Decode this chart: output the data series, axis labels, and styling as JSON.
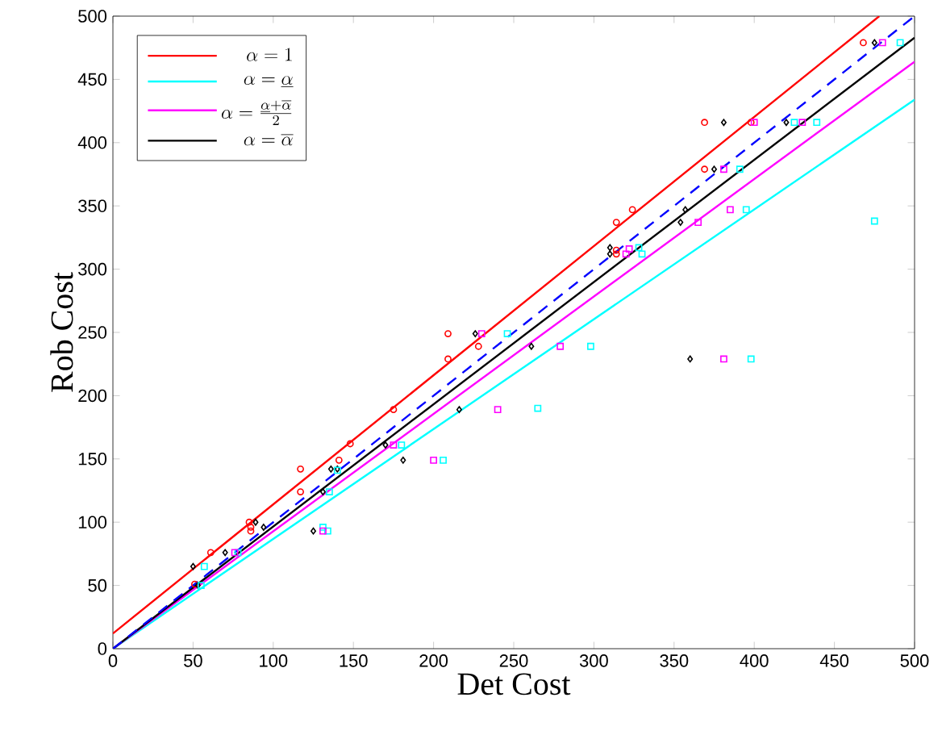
{
  "chart_data": {
    "type": "scatter",
    "xlabel": "Det Cost",
    "ylabel": "Rob Cost",
    "xlim": [
      0,
      500
    ],
    "ylim": [
      0,
      500
    ],
    "xticks": [
      0,
      50,
      100,
      150,
      200,
      250,
      300,
      350,
      400,
      450,
      500
    ],
    "yticks": [
      0,
      50,
      100,
      150,
      200,
      250,
      300,
      350,
      400,
      450,
      500
    ],
    "grid": false,
    "legend": "top left",
    "series": [
      {
        "name": "\\alpha=1",
        "type": "line",
        "color": "#ff0000",
        "marker": "none",
        "line_style": "solid",
        "x": [
          0,
          478
        ],
        "values": [
          12,
          500
        ]
      },
      {
        "name": "\\alpha=\\underline{\\alpha}",
        "type": "line",
        "color": "#00ffff",
        "marker": "none",
        "line_style": "solid",
        "x": [
          0,
          500
        ],
        "values": [
          0,
          434
        ]
      },
      {
        "name": "\\alpha=\\frac{\\underline{\\alpha}+\\overline{\\alpha}}{2}",
        "type": "line",
        "color": "#ff00ff",
        "marker": "none",
        "line_style": "solid",
        "x": [
          0,
          500
        ],
        "values": [
          0,
          464
        ]
      },
      {
        "name": "\\alpha=\\overline{\\alpha}",
        "type": "line",
        "color": "#000000",
        "marker": "none",
        "line_style": "solid",
        "x": [
          0,
          500
        ],
        "values": [
          0,
          483
        ]
      },
      {
        "type": "line",
        "color": "#0000ff",
        "marker": "none",
        "line_style": "dashed",
        "x": [
          0,
          500
        ],
        "values": [
          0,
          500
        ]
      },
      {
        "color": "#ff0000",
        "marker": "circle",
        "x": [
          117,
          117,
          141,
          85,
          86,
          86,
          61,
          51,
          209,
          209,
          228,
          175,
          148,
          369,
          398,
          369,
          324,
          314,
          314,
          314,
          468
        ],
        "values": [
          142,
          124,
          149,
          100,
          96,
          93,
          76,
          51,
          249,
          229,
          239,
          189,
          162,
          416,
          416,
          379,
          347,
          337,
          315,
          312,
          479
        ]
      },
      {
        "color": "#000000",
        "marker": "diamond",
        "x": [
          50,
          53,
          70,
          89,
          94,
          125,
          131,
          136,
          140,
          181,
          226,
          261,
          216,
          170,
          381,
          375,
          357,
          354,
          310,
          310,
          360,
          475,
          420
        ],
        "values": [
          65,
          50,
          76,
          100,
          96,
          93,
          124,
          142,
          142,
          149,
          249,
          239,
          189,
          161,
          416,
          379,
          347,
          337,
          317,
          312,
          229,
          479,
          416
        ]
      },
      {
        "color": "#00ffff",
        "marker": "square",
        "x": [
          57,
          55,
          78,
          131,
          134,
          135,
          140,
          246,
          298,
          265,
          180,
          206,
          391,
          395,
          328,
          330,
          398,
          475,
          491,
          425,
          439
        ],
        "values": [
          65,
          50,
          76,
          96,
          93,
          124,
          141,
          249,
          239,
          190,
          161,
          149,
          379,
          347,
          317,
          312,
          229,
          338,
          479,
          416,
          416
        ]
      },
      {
        "color": "#ff00ff",
        "marker": "square",
        "x": [
          131,
          76,
          230,
          279,
          240,
          175,
          200,
          400,
          381,
          385,
          365,
          322,
          320,
          381,
          480,
          430
        ],
        "values": [
          93,
          76,
          249,
          239,
          189,
          161,
          149,
          416,
          379,
          347,
          337,
          316,
          312,
          229,
          479,
          416
        ]
      }
    ]
  }
}
